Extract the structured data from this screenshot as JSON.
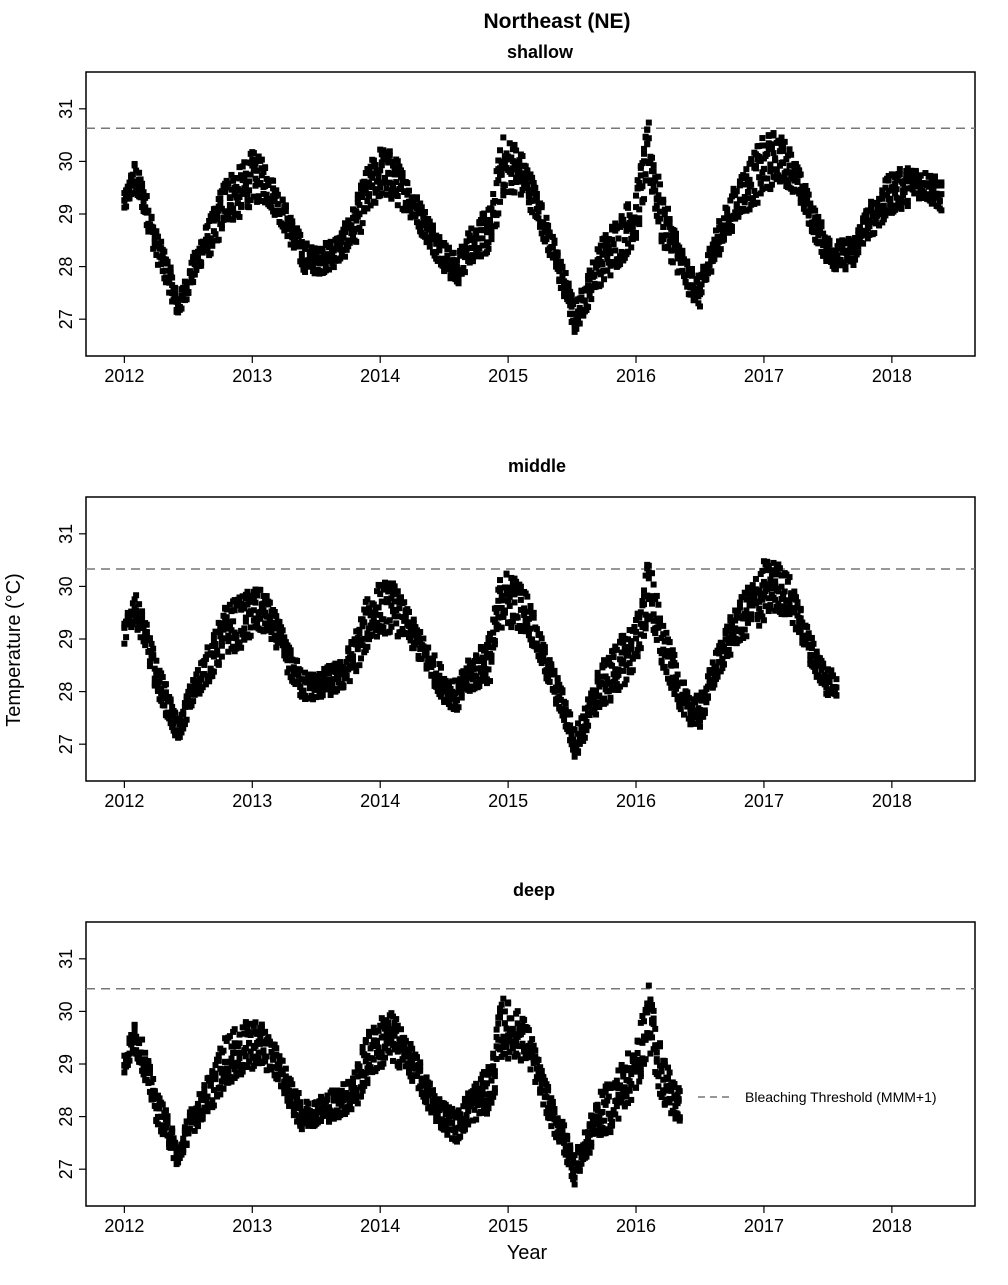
{
  "figure": {
    "title": "Northeast (NE)",
    "ylabel": "Temperature (°C)",
    "xlabel": "Year",
    "legend": {
      "label": "Bleaching Threshold (MMM+1)",
      "placement": "right of bottom panel",
      "line_style": "dashed",
      "line_color": "#777777"
    },
    "colors": {
      "data": "#000000",
      "threshold": "#777777",
      "frame": "#000000"
    }
  },
  "chart_data": [
    {
      "type": "scatter",
      "title": "shallow",
      "x_ticks": [
        "2012",
        "2013",
        "2014",
        "2015",
        "2016",
        "2017",
        "2018"
      ],
      "y_ticks": [
        "27",
        "28",
        "29",
        "30",
        "31"
      ],
      "xlim": [
        2011.7,
        2018.65
      ],
      "ylim": [
        26.3,
        31.7
      ],
      "threshold": 30.63,
      "series": [
        {
          "x": [
            2012.0,
            2012.08,
            2012.15,
            2012.25,
            2012.35,
            2012.42,
            2012.5,
            2012.6,
            2012.7,
            2012.8,
            2012.9,
            2013.0,
            2013.1,
            2013.2,
            2013.3,
            2013.4,
            2013.5,
            2013.6,
            2013.7,
            2013.8,
            2013.9,
            2014.0,
            2014.1,
            2014.2,
            2014.3,
            2014.4,
            2014.5,
            2014.6,
            2014.7,
            2014.8,
            2014.87,
            2014.95,
            2015.05,
            2015.15,
            2015.25,
            2015.35,
            2015.45,
            2015.52,
            2015.6,
            2015.7,
            2015.8,
            2015.9,
            2016.0,
            2016.1,
            2016.2,
            2016.3,
            2016.4,
            2016.5,
            2016.6,
            2016.7,
            2016.8,
            2016.9,
            2017.0,
            2017.1,
            2017.2,
            2017.3,
            2017.4,
            2017.5,
            2017.6,
            2017.7,
            2017.8,
            2017.9,
            2018.0,
            2018.1,
            2018.2,
            2018.3,
            2018.4
          ],
          "y": [
            29.2,
            29.7,
            29.3,
            28.4,
            27.8,
            27.2,
            27.7,
            28.3,
            28.7,
            29.3,
            29.4,
            29.7,
            29.6,
            29.2,
            28.7,
            28.2,
            28.1,
            28.2,
            28.4,
            28.8,
            29.4,
            29.8,
            29.7,
            29.4,
            29.0,
            28.6,
            28.2,
            27.9,
            28.4,
            28.6,
            28.7,
            29.9,
            29.9,
            29.6,
            29.0,
            28.3,
            27.6,
            27.0,
            27.4,
            28.0,
            28.3,
            28.6,
            29.0,
            30.2,
            28.9,
            28.4,
            27.8,
            27.5,
            28.3,
            28.8,
            29.3,
            29.6,
            29.9,
            30.1,
            29.9,
            29.4,
            28.8,
            28.3,
            28.2,
            28.3,
            28.8,
            29.1,
            29.4,
            29.5,
            29.6,
            29.5,
            29.3
          ],
          "spread": [
            0.2,
            0.3,
            0.3,
            0.3,
            0.3,
            0.2,
            0.25,
            0.3,
            0.4,
            0.5,
            0.5,
            0.5,
            0.4,
            0.3,
            0.3,
            0.3,
            0.25,
            0.3,
            0.3,
            0.4,
            0.5,
            0.5,
            0.5,
            0.35,
            0.3,
            0.3,
            0.3,
            0.3,
            0.35,
            0.4,
            0.5,
            0.6,
            0.5,
            0.4,
            0.3,
            0.3,
            0.3,
            0.3,
            0.3,
            0.4,
            0.5,
            0.5,
            0.5,
            0.6,
            0.5,
            0.4,
            0.3,
            0.3,
            0.3,
            0.35,
            0.4,
            0.5,
            0.6,
            0.5,
            0.4,
            0.3,
            0.3,
            0.3,
            0.3,
            0.3,
            0.3,
            0.4,
            0.4,
            0.4,
            0.3,
            0.3,
            0.3
          ]
        }
      ]
    },
    {
      "type": "scatter",
      "title": "middle",
      "x_ticks": [
        "2012",
        "2013",
        "2014",
        "2015",
        "2016",
        "2017",
        "2018"
      ],
      "y_ticks": [
        "27",
        "28",
        "29",
        "30",
        "31"
      ],
      "xlim": [
        2011.7,
        2018.65
      ],
      "ylim": [
        26.3,
        31.7
      ],
      "threshold": 30.33,
      "series": [
        {
          "x": [
            2012.0,
            2012.08,
            2012.15,
            2012.25,
            2012.35,
            2012.42,
            2012.5,
            2012.6,
            2012.7,
            2012.8,
            2012.9,
            2013.0,
            2013.1,
            2013.2,
            2013.3,
            2013.4,
            2013.5,
            2013.6,
            2013.7,
            2013.8,
            2013.9,
            2014.0,
            2014.1,
            2014.2,
            2014.3,
            2014.4,
            2014.5,
            2014.6,
            2014.7,
            2014.8,
            2014.87,
            2014.95,
            2015.05,
            2015.15,
            2015.25,
            2015.35,
            2015.45,
            2015.52,
            2015.6,
            2015.7,
            2015.8,
            2015.9,
            2016.0,
            2016.1,
            2016.2,
            2016.3,
            2016.4,
            2016.5,
            2016.6,
            2016.7,
            2016.8,
            2016.9,
            2017.0,
            2017.1,
            2017.2,
            2017.3,
            2017.4,
            2017.5,
            2017.58
          ],
          "y": [
            29.1,
            29.6,
            29.2,
            28.3,
            27.7,
            27.2,
            27.8,
            28.3,
            28.7,
            29.2,
            29.3,
            29.5,
            29.5,
            29.1,
            28.5,
            28.1,
            28.1,
            28.2,
            28.3,
            28.7,
            29.3,
            29.6,
            29.6,
            29.3,
            28.9,
            28.5,
            28.1,
            27.9,
            28.3,
            28.5,
            28.7,
            29.8,
            29.7,
            29.5,
            28.8,
            28.2,
            27.6,
            27.0,
            27.4,
            28.0,
            28.3,
            28.6,
            28.9,
            30.0,
            28.9,
            28.3,
            27.7,
            27.6,
            28.3,
            28.9,
            29.3,
            29.6,
            29.9,
            30.0,
            29.8,
            29.2,
            28.6,
            28.2,
            28.1
          ],
          "spread": [
            0.2,
            0.3,
            0.3,
            0.3,
            0.3,
            0.2,
            0.25,
            0.3,
            0.4,
            0.5,
            0.5,
            0.5,
            0.4,
            0.3,
            0.3,
            0.3,
            0.25,
            0.3,
            0.3,
            0.4,
            0.5,
            0.5,
            0.5,
            0.35,
            0.3,
            0.3,
            0.3,
            0.3,
            0.35,
            0.4,
            0.5,
            0.6,
            0.5,
            0.4,
            0.3,
            0.3,
            0.3,
            0.3,
            0.3,
            0.4,
            0.5,
            0.5,
            0.5,
            0.6,
            0.5,
            0.4,
            0.3,
            0.3,
            0.3,
            0.35,
            0.4,
            0.5,
            0.6,
            0.5,
            0.4,
            0.3,
            0.3,
            0.3,
            0.2
          ]
        }
      ]
    },
    {
      "type": "scatter",
      "title": "deep",
      "x_ticks": [
        "2012",
        "2013",
        "2014",
        "2015",
        "2016",
        "2017",
        "2018"
      ],
      "y_ticks": [
        "27",
        "28",
        "29",
        "30",
        "31"
      ],
      "xlim": [
        2011.7,
        2018.65
      ],
      "ylim": [
        26.3,
        31.7
      ],
      "threshold": 30.43,
      "series": [
        {
          "x": [
            2012.0,
            2012.08,
            2012.15,
            2012.25,
            2012.35,
            2012.42,
            2012.5,
            2012.6,
            2012.7,
            2012.8,
            2012.9,
            2013.0,
            2013.1,
            2013.2,
            2013.3,
            2013.4,
            2013.5,
            2013.6,
            2013.7,
            2013.8,
            2013.9,
            2014.0,
            2014.1,
            2014.2,
            2014.3,
            2014.4,
            2014.5,
            2014.6,
            2014.7,
            2014.8,
            2014.87,
            2014.95,
            2015.05,
            2015.15,
            2015.25,
            2015.35,
            2015.45,
            2015.52,
            2015.6,
            2015.7,
            2015.8,
            2015.9,
            2016.0,
            2016.1,
            2016.2,
            2016.3,
            2016.35
          ],
          "y": [
            29.0,
            29.5,
            29.1,
            28.2,
            27.7,
            27.2,
            27.8,
            28.2,
            28.6,
            29.1,
            29.2,
            29.4,
            29.3,
            29.0,
            28.4,
            28.0,
            28.1,
            28.2,
            28.3,
            28.5,
            29.1,
            29.4,
            29.5,
            29.2,
            28.8,
            28.3,
            28.0,
            27.8,
            28.2,
            28.4,
            28.6,
            29.7,
            29.6,
            29.4,
            28.7,
            28.0,
            27.5,
            27.0,
            27.4,
            28.0,
            28.2,
            28.6,
            28.9,
            29.9,
            28.8,
            28.3,
            28.2
          ],
          "spread": [
            0.2,
            0.3,
            0.3,
            0.3,
            0.3,
            0.2,
            0.25,
            0.3,
            0.4,
            0.5,
            0.5,
            0.5,
            0.4,
            0.3,
            0.3,
            0.3,
            0.25,
            0.3,
            0.3,
            0.4,
            0.5,
            0.5,
            0.5,
            0.35,
            0.3,
            0.3,
            0.3,
            0.3,
            0.35,
            0.4,
            0.5,
            0.6,
            0.5,
            0.4,
            0.3,
            0.3,
            0.3,
            0.3,
            0.3,
            0.4,
            0.5,
            0.5,
            0.5,
            0.6,
            0.5,
            0.4,
            0.3
          ]
        }
      ]
    }
  ]
}
